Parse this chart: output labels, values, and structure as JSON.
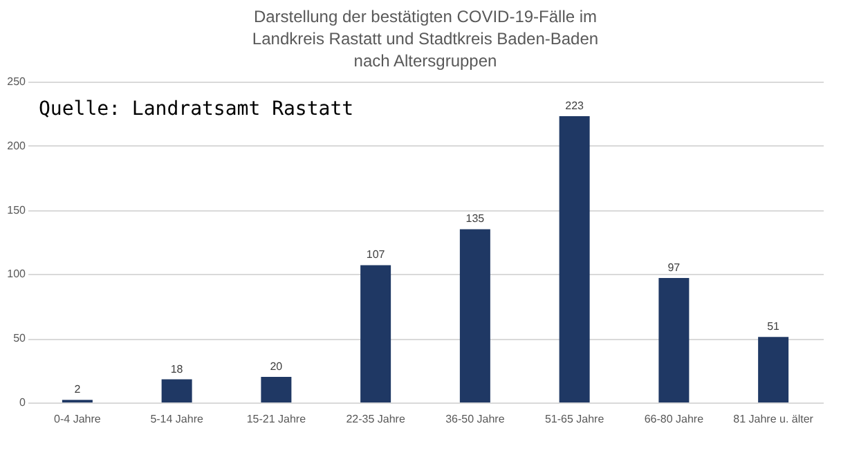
{
  "chart_data": {
    "type": "bar",
    "title": "Darstellung der bestätigten COVID-19-Fälle im\nLandkreis Rastatt und Stadtkreis Baden-Baden\nnach Altersgruppen",
    "categories": [
      "0-4 Jahre",
      "5-14 Jahre",
      "15-21 Jahre",
      "22-35 Jahre",
      "36-50 Jahre",
      "51-65 Jahre",
      "66-80 Jahre",
      "81 Jahre u. älter"
    ],
    "values": [
      2,
      18,
      20,
      107,
      135,
      223,
      97,
      51
    ],
    "color": "#1f3864",
    "ylim": [
      0,
      250
    ],
    "yticks": [
      0,
      50,
      100,
      150,
      200,
      250
    ],
    "grid": "y",
    "data_labels": true,
    "annotations": [
      "Quelle: Landratsamt Rastatt"
    ]
  }
}
